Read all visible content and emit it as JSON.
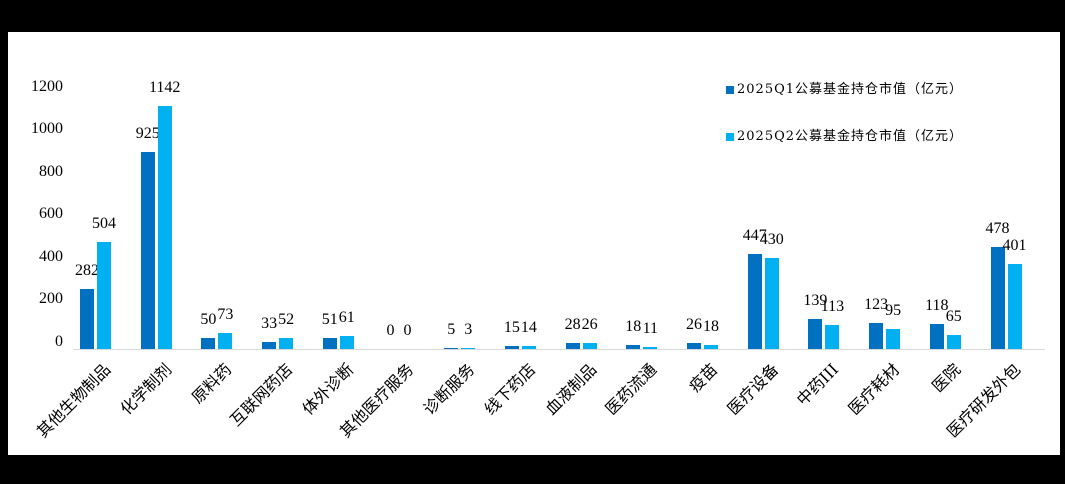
{
  "chart_data": {
    "type": "bar",
    "title": "",
    "xlabel": "",
    "ylabel": "",
    "ylim": [
      0,
      1200
    ],
    "yticks": [
      0,
      200,
      400,
      600,
      800,
      1000,
      1200
    ],
    "grid": false,
    "legend_position": "top-right",
    "categories": [
      "其他生物制品",
      "化学制剂",
      "原料药",
      "互联网药店",
      "体外诊断",
      "其他医疗服务",
      "诊断服务",
      "线下药店",
      "血液制品",
      "医药流通",
      "疫苗",
      "医疗设备",
      "中药III",
      "医疗耗材",
      "医院",
      "医疗研发外包"
    ],
    "series": [
      {
        "name": "2025Q1公募基金持仓市值（亿元）",
        "color": "#0070C0",
        "values": [
          282,
          925,
          50,
          33,
          51,
          0,
          5,
          15,
          28,
          18,
          26,
          447,
          139,
          123,
          118,
          478
        ]
      },
      {
        "name": "2025Q2公募基金持仓市值（亿元）",
        "color": "#00B0F0",
        "values": [
          504,
          1142,
          73,
          52,
          61,
          0,
          3,
          14,
          26,
          11,
          18,
          430,
          113,
          95,
          65,
          401
        ]
      }
    ]
  },
  "legend": {
    "q1": "2025Q1公募基金持仓市值（亿元）",
    "q2": "2025Q2公募基金持仓市值（亿元）"
  },
  "yaxis": {
    "t0": "0",
    "t200": "200",
    "t400": "400",
    "t600": "600",
    "t800": "800",
    "t1000": "1000",
    "t1200": "1200"
  }
}
